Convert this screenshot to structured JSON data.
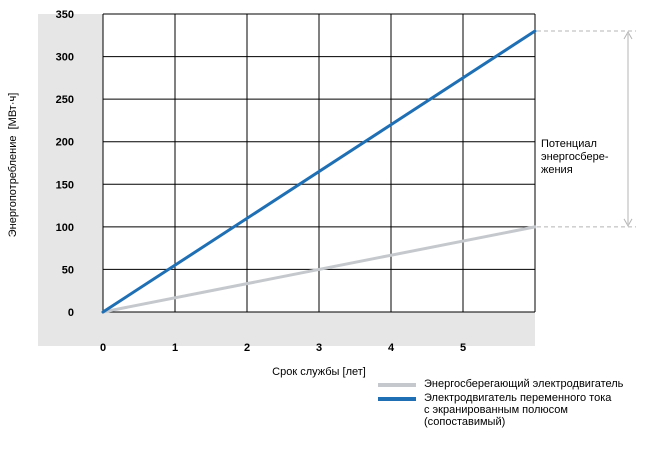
{
  "chart_data": {
    "type": "line",
    "xlabel": "Срок службы [лет]",
    "ylabel": "Энергопотребление  [МВт·ч]",
    "x_ticks": [
      "0",
      "1",
      "2",
      "3",
      "4",
      "5"
    ],
    "y_ticks": [
      "0",
      "50",
      "100",
      "150",
      "200",
      "250",
      "300",
      "350"
    ],
    "xlim": [
      0,
      6
    ],
    "ylim": [
      0,
      350
    ],
    "grid": true,
    "legend_position": "bottom-right",
    "series": [
      {
        "name": "Энергосберегающий электродвигатель",
        "color": "#c5c9cd",
        "x": [
          0,
          6
        ],
        "y": [
          0,
          100
        ]
      },
      {
        "name": "Электродвигатель переменного тока\nс экранированным полюсом\n(сопоставимый)",
        "color": "#1f6fb5",
        "x": [
          0,
          6
        ],
        "y": [
          0,
          330
        ]
      }
    ],
    "annotation": "Потенциал\nэнергосбере-\nжения",
    "colors": {
      "plot_area": "#ffffff",
      "frame_bg": "#e6e6e6",
      "grid": "#000000",
      "guide": "#b5b5b5"
    }
  }
}
